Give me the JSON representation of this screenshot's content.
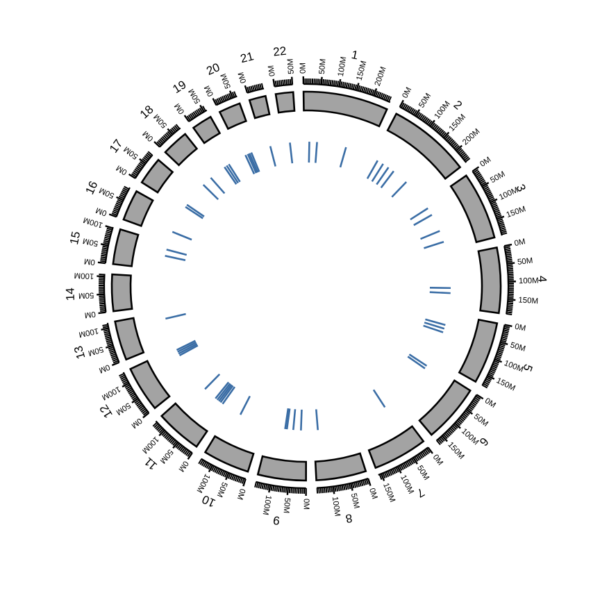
{
  "chart_data": {
    "type": "circos",
    "title": "",
    "tick_unit": "M",
    "chromosomes": [
      {
        "name": "1",
        "length": 249,
        "ticks": [
          0,
          50,
          100,
          150,
          200
        ]
      },
      {
        "name": "2",
        "length": 243,
        "ticks": [
          0,
          50,
          100,
          150,
          200
        ]
      },
      {
        "name": "3",
        "length": 198,
        "ticks": [
          0,
          50,
          100,
          150
        ]
      },
      {
        "name": "4",
        "length": 191,
        "ticks": [
          0,
          50,
          100,
          150
        ]
      },
      {
        "name": "5",
        "length": 181,
        "ticks": [
          0,
          50,
          100,
          150
        ]
      },
      {
        "name": "6",
        "length": 171,
        "ticks": [
          0,
          50,
          100,
          150
        ]
      },
      {
        "name": "7",
        "length": 159,
        "ticks": [
          0,
          50,
          100,
          150
        ]
      },
      {
        "name": "8",
        "length": 146,
        "ticks": [
          0,
          50,
          100
        ]
      },
      {
        "name": "9",
        "length": 141,
        "ticks": [
          0,
          50,
          100
        ]
      },
      {
        "name": "10",
        "length": 136,
        "ticks": [
          0,
          50,
          100
        ]
      },
      {
        "name": "11",
        "length": 135,
        "ticks": [
          0,
          50,
          100
        ]
      },
      {
        "name": "12",
        "length": 134,
        "ticks": [
          0,
          50,
          100
        ]
      },
      {
        "name": "13",
        "length": 115,
        "ticks": [
          0,
          50,
          100
        ]
      },
      {
        "name": "14",
        "length": 107,
        "ticks": [
          0,
          50,
          100
        ]
      },
      {
        "name": "15",
        "length": 103,
        "ticks": [
          0,
          50,
          100
        ]
      },
      {
        "name": "16",
        "length": 90,
        "ticks": [
          0,
          50
        ]
      },
      {
        "name": "17",
        "length": 81,
        "ticks": [
          0,
          50
        ]
      },
      {
        "name": "18",
        "length": 78,
        "ticks": [
          0,
          50
        ]
      },
      {
        "name": "19",
        "length": 59,
        "ticks": [
          0,
          50
        ]
      },
      {
        "name": "20",
        "length": 63,
        "ticks": [
          0,
          50
        ]
      },
      {
        "name": "21",
        "length": 48,
        "ticks": [
          0
        ]
      },
      {
        "name": "22",
        "length": 51,
        "ticks": [
          0,
          50
        ]
      }
    ],
    "segments": [
      {
        "chr": "1",
        "pos": 20
      },
      {
        "chr": "1",
        "pos": 50
      },
      {
        "chr": "1",
        "pos": 165
      },
      {
        "chr": "2",
        "pos": 20
      },
      {
        "chr": "2",
        "pos": 45
      },
      {
        "chr": "2",
        "pos": 70
      },
      {
        "chr": "2",
        "pos": 95
      },
      {
        "chr": "2",
        "pos": 160
      },
      {
        "chr": "3",
        "pos": 20
      },
      {
        "chr": "3",
        "pos": 50
      },
      {
        "chr": "3",
        "pos": 120
      },
      {
        "chr": "3",
        "pos": 165
      },
      {
        "chr": "4",
        "pos": 120
      },
      {
        "chr": "4",
        "pos": 140
      },
      {
        "chr": "5",
        "pos": 45
      },
      {
        "chr": "5",
        "pos": 60
      },
      {
        "chr": "5",
        "pos": 75
      },
      {
        "chr": "6",
        "pos": 10
      },
      {
        "chr": "6",
        "pos": 22
      },
      {
        "chr": "7",
        "pos": 40
      },
      {
        "chr": "8",
        "pos": 130
      },
      {
        "chr": "9",
        "pos": 20
      },
      {
        "chr": "9",
        "pos": 50
      },
      {
        "chr": "9",
        "pos": 75
      },
      {
        "chr": "9",
        "pos": 82
      },
      {
        "chr": "10",
        "pos": 95
      },
      {
        "chr": "11",
        "pos": 10
      },
      {
        "chr": "11",
        "pos": 20
      },
      {
        "chr": "11",
        "pos": 28
      },
      {
        "chr": "11",
        "pos": 36
      },
      {
        "chr": "11",
        "pos": 45
      },
      {
        "chr": "11",
        "pos": 100
      },
      {
        "chr": "12",
        "pos": 100
      },
      {
        "chr": "12",
        "pos": 108
      },
      {
        "chr": "12",
        "pos": 116
      },
      {
        "chr": "12",
        "pos": 124
      },
      {
        "chr": "13",
        "pos": 90
      },
      {
        "chr": "15",
        "pos": 55
      },
      {
        "chr": "15",
        "pos": 80
      },
      {
        "chr": "16",
        "pos": 20
      },
      {
        "chr": "17",
        "pos": 10
      },
      {
        "chr": "17",
        "pos": 20
      },
      {
        "chr": "18",
        "pos": 10
      },
      {
        "chr": "18",
        "pos": 50
      },
      {
        "chr": "19",
        "pos": 10
      },
      {
        "chr": "19",
        "pos": 20
      },
      {
        "chr": "19",
        "pos": 30
      },
      {
        "chr": "20",
        "pos": 15
      },
      {
        "chr": "20",
        "pos": 25
      },
      {
        "chr": "20",
        "pos": 32
      },
      {
        "chr": "20",
        "pos": 40
      },
      {
        "chr": "21",
        "pos": 25
      },
      {
        "chr": "22",
        "pos": 25
      }
    ],
    "colors": {
      "block": "#a3a3a3",
      "segment": "#3a6da5",
      "axis": "#000000"
    }
  }
}
